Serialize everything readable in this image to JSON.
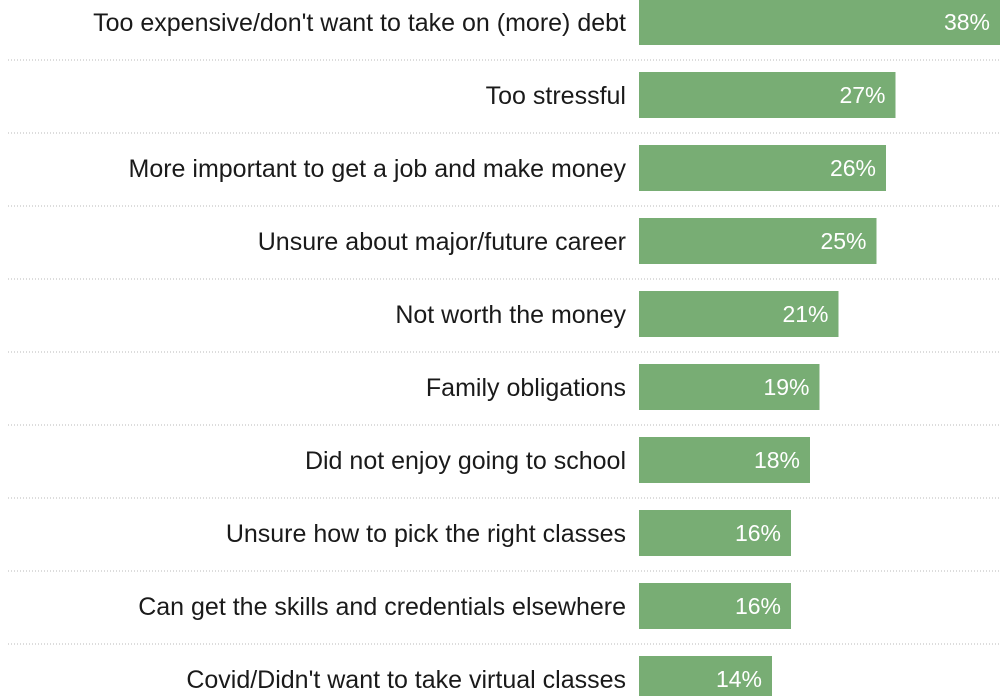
{
  "chart_data": {
    "type": "bar",
    "orientation": "horizontal",
    "categories": [
      "Too expensive/don't want to take on (more) debt",
      "Too stressful",
      "More important to get a job and make money",
      "Unsure about major/future career",
      "Not worth the money",
      "Family obligations",
      "Did not enjoy going to school",
      "Unsure how to pick the right classes",
      "Can get the skills and credentials elsewhere",
      "Covid/Didn't want to take virtual classes"
    ],
    "values": [
      38,
      27,
      26,
      25,
      21,
      19,
      18,
      16,
      16,
      14
    ],
    "value_labels": [
      "38%",
      "27%",
      "26%",
      "25%",
      "21%",
      "19%",
      "18%",
      "16%",
      "16%",
      "14%"
    ],
    "unit": "%",
    "xlim": [
      0,
      38
    ],
    "grid": false,
    "colors": {
      "bar": "#78ad74",
      "bar_label": "#ffffff",
      "category_label": "#1a1a1a",
      "divider": "#b8b8b8"
    }
  }
}
